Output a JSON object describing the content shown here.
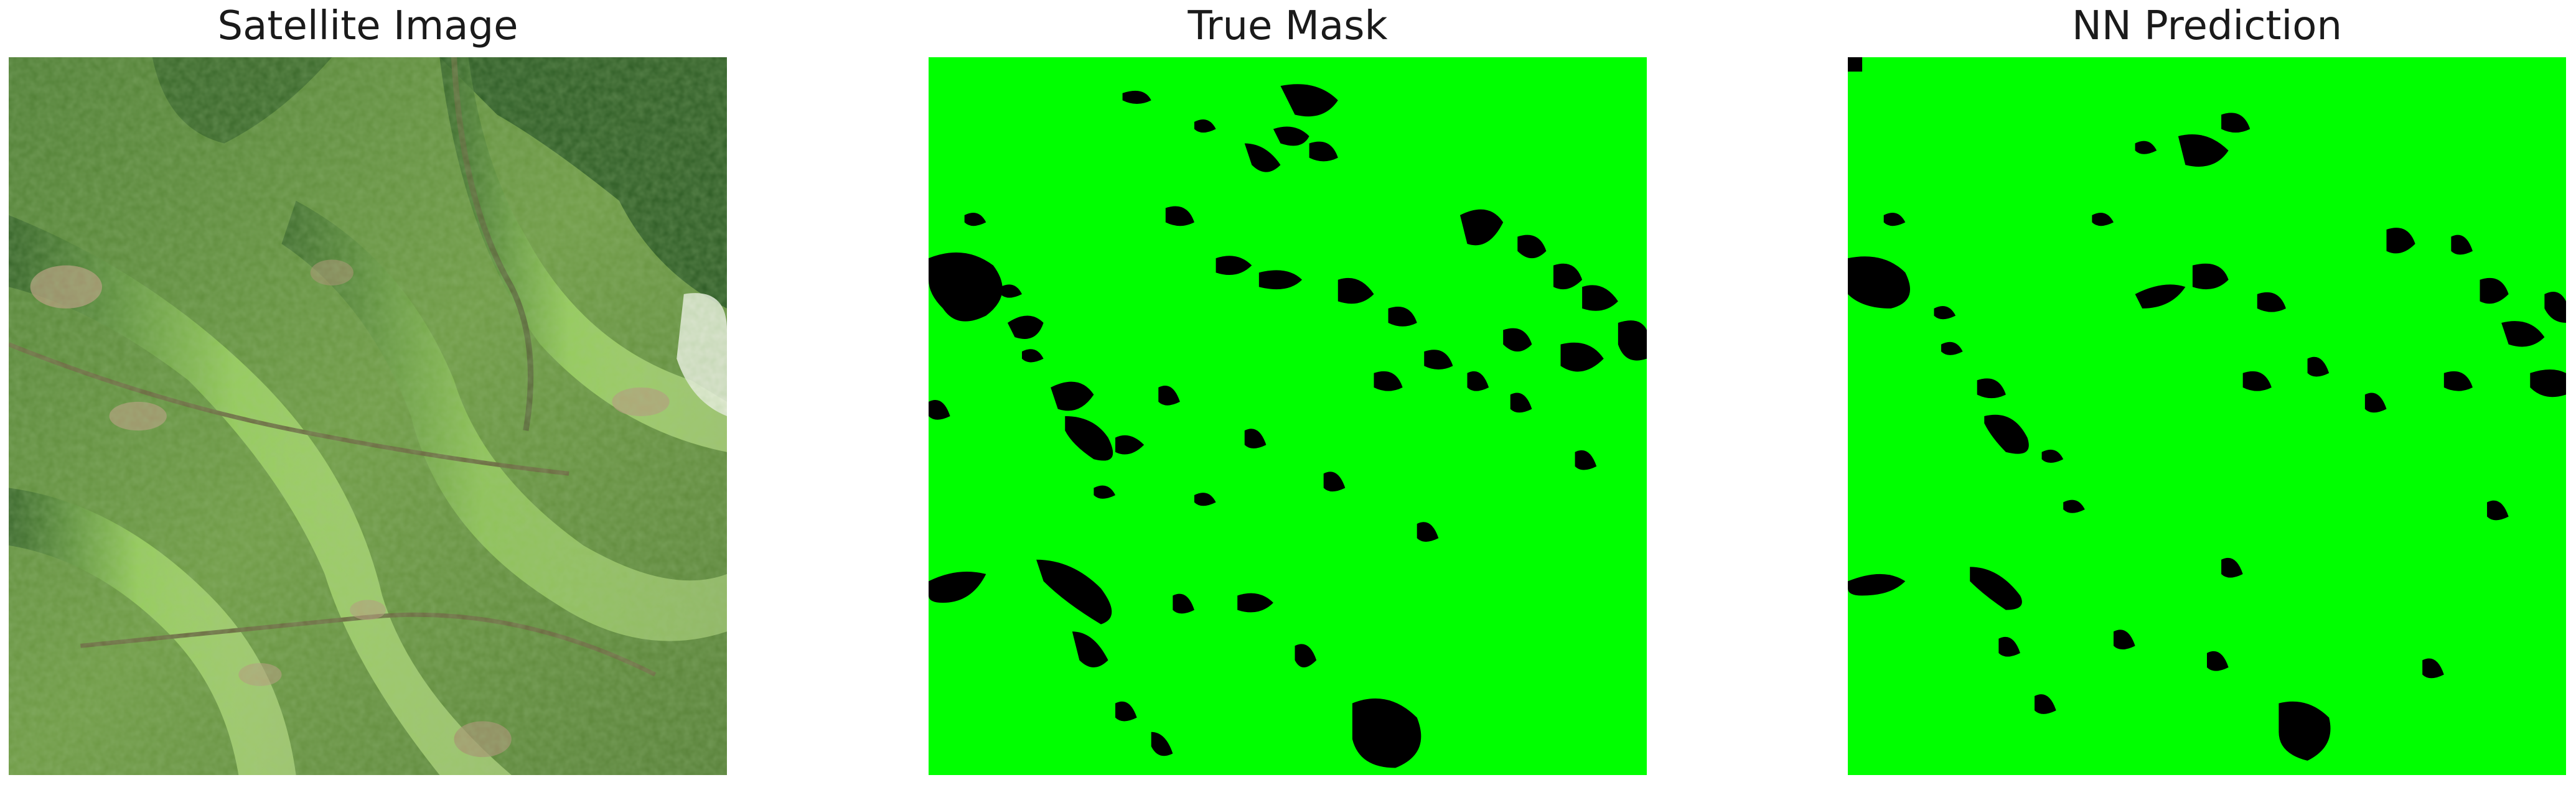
{
  "figure": {
    "panels": [
      {
        "id": "satellite",
        "title": "Satellite Image",
        "kind": "photo"
      },
      {
        "id": "true-mask",
        "title": "True Mask",
        "kind": "mask"
      },
      {
        "id": "nn-prediction",
        "title": "NN Prediction",
        "kind": "mask"
      }
    ]
  },
  "colors": {
    "mask_foreground": "#00ff00",
    "mask_background": "#000000",
    "terrain_base": "#5f8a3a",
    "terrain_highlight": "#a6dd6a",
    "terrain_shadow": "#1f4d1e",
    "terrain_bare": "#b79a7e"
  }
}
